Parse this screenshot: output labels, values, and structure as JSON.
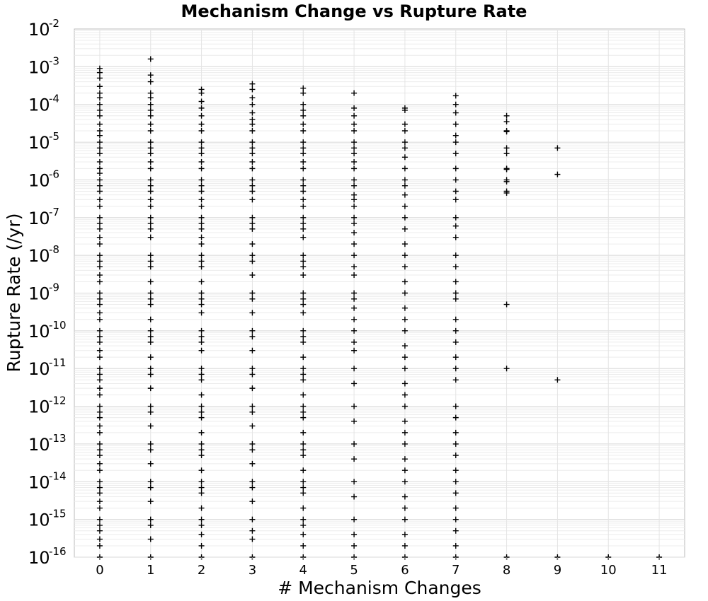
{
  "chart_data": {
    "type": "scatter",
    "title": "Mechanism Change vs Rupture Rate",
    "xlabel": "# Mechanism Changes",
    "ylabel": "Rupture Rate (/yr)",
    "xlim": [
      -0.5,
      11.5
    ],
    "ylim": [
      1e-16,
      0.01
    ],
    "y_scale": "log",
    "grid": true,
    "marker": "plus",
    "marker_color": "#000000",
    "x_ticks": [
      "0",
      "1",
      "2",
      "3",
      "4",
      "5",
      "6",
      "7",
      "8",
      "9",
      "10",
      "11"
    ],
    "y_ticks": [
      {
        "base": "10",
        "exp": "-2"
      },
      {
        "base": "10",
        "exp": "-3"
      },
      {
        "base": "10",
        "exp": "-4"
      },
      {
        "base": "10",
        "exp": "-5"
      },
      {
        "base": "10",
        "exp": "-6"
      },
      {
        "base": "10",
        "exp": "-7"
      },
      {
        "base": "10",
        "exp": "-8"
      },
      {
        "base": "10",
        "exp": "-9"
      },
      {
        "base": "10",
        "exp": "-10"
      },
      {
        "base": "10",
        "exp": "-11"
      },
      {
        "base": "10",
        "exp": "-12"
      },
      {
        "base": "10",
        "exp": "-13"
      },
      {
        "base": "10",
        "exp": "-14"
      },
      {
        "base": "10",
        "exp": "-15"
      },
      {
        "base": "10",
        "exp": "-16"
      }
    ],
    "series": [
      {
        "x": 0,
        "y": [
          0.0009,
          0.0007,
          0.0005,
          0.0003,
          0.0002,
          0.00015,
          0.0001,
          7e-05,
          5e-05,
          3e-05,
          2e-05,
          1.5e-05,
          1e-05,
          7e-06,
          5e-06,
          3e-06,
          2e-06,
          1.5e-06,
          1e-06,
          7e-07,
          5e-07,
          3e-07,
          2e-07,
          1e-07,
          7e-08,
          5e-08,
          3e-08,
          2e-08,
          1e-08,
          7e-09,
          5e-09,
          3e-09,
          2e-09,
          1e-09,
          7e-10,
          5e-10,
          3e-10,
          2e-10,
          1e-10,
          7e-11,
          5e-11,
          3e-11,
          2e-11,
          1e-11,
          7e-12,
          5e-12,
          3e-12,
          2e-12,
          1e-12,
          7e-13,
          5e-13,
          3e-13,
          2e-13,
          1e-13,
          7e-14,
          5e-14,
          3e-14,
          2e-14,
          1e-14,
          7e-15,
          5e-15,
          3e-15,
          2e-15,
          1e-15,
          7e-16,
          5e-16,
          3e-16,
          2e-16,
          1e-16
        ]
      },
      {
        "x": 1,
        "y": [
          0.0016,
          0.0006,
          0.0004,
          0.0002,
          0.00015,
          0.0001,
          7e-05,
          5e-05,
          3e-05,
          2e-05,
          1e-05,
          7e-06,
          5e-06,
          3e-06,
          2e-06,
          1e-06,
          7e-07,
          5e-07,
          3e-07,
          2e-07,
          1e-07,
          7e-08,
          5e-08,
          3e-08,
          1e-08,
          7e-09,
          5e-09,
          2e-09,
          1e-09,
          7e-10,
          5e-10,
          2e-10,
          1e-10,
          7e-11,
          5e-11,
          2e-11,
          1e-11,
          7e-12,
          3e-12,
          1e-12,
          7e-13,
          3e-13,
          1e-13,
          7e-14,
          3e-14,
          1e-14,
          7e-15,
          3e-15,
          1e-15,
          7e-16,
          3e-16,
          1e-16
        ]
      },
      {
        "x": 2,
        "y": [
          0.00025,
          0.0002,
          0.00012,
          8e-05,
          5e-05,
          3e-05,
          2e-05,
          1e-05,
          7e-06,
          5e-06,
          3e-06,
          2e-06,
          1e-06,
          7e-07,
          5e-07,
          3e-07,
          2e-07,
          1e-07,
          7e-08,
          5e-08,
          3e-08,
          2e-08,
          1e-08,
          7e-09,
          5e-09,
          2e-09,
          1e-09,
          7e-10,
          5e-10,
          3e-10,
          1e-10,
          7e-11,
          5e-11,
          3e-11,
          1e-11,
          7e-12,
          5e-12,
          2e-12,
          1e-12,
          7e-13,
          5e-13,
          2e-13,
          1e-13,
          7e-14,
          5e-14,
          2e-14,
          1e-14,
          7e-15,
          5e-15,
          2e-15,
          1e-15,
          7e-16,
          4e-16,
          2e-16,
          1e-16
        ]
      },
      {
        "x": 3,
        "y": [
          0.00035,
          0.00025,
          0.00015,
          0.0001,
          6e-05,
          4e-05,
          3e-05,
          2e-05,
          1e-05,
          7e-06,
          5e-06,
          3e-06,
          2e-06,
          1e-06,
          7e-07,
          5e-07,
          3e-07,
          1e-07,
          7e-08,
          5e-08,
          2e-08,
          1e-08,
          7e-09,
          3e-09,
          1e-09,
          7e-10,
          3e-10,
          1e-10,
          7e-11,
          3e-11,
          1e-11,
          7e-12,
          3e-12,
          1e-12,
          7e-13,
          3e-13,
          1e-13,
          7e-14,
          3e-14,
          1e-14,
          7e-15,
          3e-15,
          1e-15,
          5e-16,
          3e-16,
          1e-16
        ]
      },
      {
        "x": 4,
        "y": [
          0.00027,
          0.0002,
          0.0001,
          7e-05,
          5e-05,
          3e-05,
          2e-05,
          1e-05,
          7e-06,
          5e-06,
          3e-06,
          2e-06,
          1e-06,
          7e-07,
          5e-07,
          3e-07,
          2e-07,
          1e-07,
          7e-08,
          5e-08,
          3e-08,
          1e-08,
          7e-09,
          5e-09,
          3e-09,
          1e-09,
          7e-10,
          5e-10,
          3e-10,
          1e-10,
          7e-11,
          5e-11,
          2e-11,
          1e-11,
          7e-12,
          5e-12,
          2e-12,
          1e-12,
          7e-13,
          5e-13,
          2e-13,
          1e-13,
          7e-14,
          5e-14,
          2e-14,
          1e-14,
          7e-15,
          5e-15,
          2e-15,
          1e-15,
          7e-16,
          4e-16,
          2e-16,
          1e-16
        ]
      },
      {
        "x": 5,
        "y": [
          0.0002,
          8e-05,
          5e-05,
          3e-05,
          2e-05,
          1e-05,
          7e-06,
          5e-06,
          3e-06,
          2e-06,
          1e-06,
          7e-07,
          4e-07,
          3e-07,
          2e-07,
          1e-07,
          7e-08,
          4e-08,
          2e-08,
          1e-08,
          5e-09,
          3e-09,
          1e-09,
          7e-10,
          4e-10,
          2e-10,
          1e-10,
          5e-11,
          3e-11,
          1e-11,
          4e-12,
          1e-12,
          4e-13,
          1e-13,
          4e-14,
          1e-14,
          4e-15,
          1e-15,
          4e-16,
          2e-16,
          1e-16
        ]
      },
      {
        "x": 6,
        "y": [
          8e-05,
          7e-05,
          3e-05,
          2e-05,
          1e-05,
          7e-06,
          4e-06,
          2e-06,
          1e-06,
          7e-07,
          4e-07,
          2e-07,
          1e-07,
          5e-08,
          2e-08,
          1e-08,
          5e-09,
          2e-09,
          1e-09,
          4e-10,
          2e-10,
          1e-10,
          4e-11,
          2e-11,
          1e-11,
          4e-12,
          2e-12,
          1e-12,
          4e-13,
          2e-13,
          1e-13,
          4e-14,
          2e-14,
          1e-14,
          4e-15,
          2e-15,
          1e-15,
          4e-16,
          2e-16,
          1e-16
        ]
      },
      {
        "x": 7,
        "y": [
          0.00017,
          0.0001,
          6e-05,
          3e-05,
          1.5e-05,
          1e-05,
          5e-06,
          2e-06,
          1e-06,
          5e-07,
          3e-07,
          1e-07,
          6e-08,
          3e-08,
          1e-08,
          5e-09,
          2e-09,
          1e-09,
          7e-10,
          2e-10,
          1e-10,
          5e-11,
          2e-11,
          1e-11,
          5e-12,
          1e-12,
          5e-13,
          2e-13,
          1e-13,
          5e-14,
          2e-14,
          1e-14,
          5e-15,
          2e-15,
          1e-15,
          5e-16,
          2e-16,
          1e-16
        ]
      },
      {
        "x": 8,
        "y": [
          5e-05,
          3.5e-05,
          2e-05,
          1.9e-05,
          7e-06,
          5e-06,
          2e-06,
          1.9e-06,
          1e-06,
          9e-07,
          5e-07,
          4.5e-07,
          5e-10,
          1e-11,
          1e-16
        ]
      },
      {
        "x": 9,
        "y": [
          7e-06,
          1.4e-06,
          5e-12,
          1e-16
        ]
      },
      {
        "x": 10,
        "y": [
          1e-16
        ]
      },
      {
        "x": 11,
        "y": [
          1e-16
        ]
      }
    ]
  }
}
